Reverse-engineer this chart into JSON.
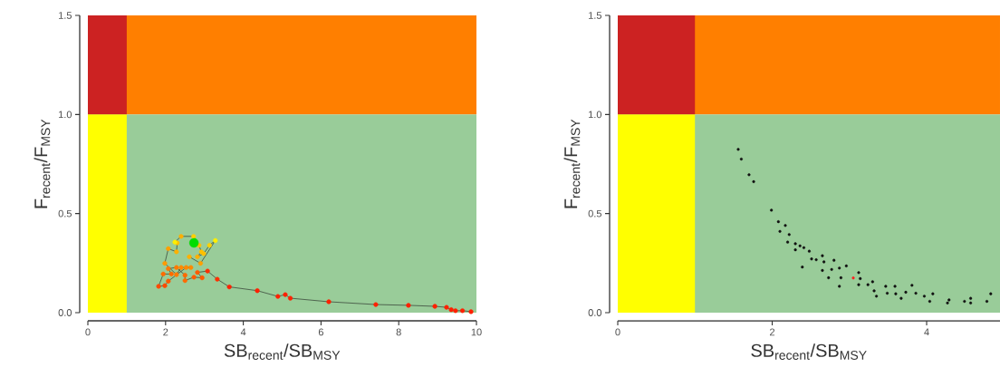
{
  "chart_data": [
    {
      "type": "line",
      "xlabel": "SB$_{recent}$/SB$_{MSY}$",
      "ylabel": "F$_{recent}$/F$_{MSY}$",
      "xlim": [
        0,
        10
      ],
      "ylim": [
        0,
        1.5
      ],
      "xticks": [
        0,
        2,
        4,
        6,
        8,
        10
      ],
      "yticks": [
        {
          "value": 0,
          "label": "0.0"
        },
        {
          "value": 0.5,
          "label": "0.5"
        },
        {
          "value": 1,
          "label": "1.0"
        },
        {
          "value": 1.5,
          "label": "1.5"
        }
      ],
      "marker": "circle",
      "bands": [
        {
          "axis": "y",
          "from": 0,
          "to": 1,
          "color": "#99cc99"
        },
        {
          "axis": "y",
          "from": 1,
          "to": 1.5,
          "color": "#ff7f00"
        },
        {
          "axis": "x",
          "from": 0,
          "to": 1,
          "color": "#ffff00"
        },
        {
          "axis": "x",
          "from": 0,
          "to": 1,
          "color": "#cc2222"
        }
      ],
      "series": [
        {
          "type": "line",
          "color": "#3c4a3c",
          "x": [
            9.86,
            9.64,
            9.46,
            9.35,
            9.23,
            8.93,
            8.25,
            7.41,
            6.2,
            5.21,
            5.08,
            4.89,
            4.36,
            3.64,
            3.33,
            3.08,
            2.82,
            2.94,
            2.73,
            2.5,
            2.5,
            2.28,
            2.07,
            2.15,
            1.94,
            1.82,
            1.98,
            2.07,
            2.53,
            2.65,
            2.4,
            2.28,
            1.98,
            2.07,
            2.28,
            2.3,
            2.24,
            2.4,
            2.72,
            2.86,
            2.92,
            2.82,
            2.98,
            3.13,
            3.28,
            2.9,
            2.61
          ],
          "values": [
            0.005,
            0.01,
            0.01,
            0.015,
            0.027,
            0.032,
            0.037,
            0.041,
            0.055,
            0.073,
            0.091,
            0.082,
            0.111,
            0.13,
            0.169,
            0.21,
            0.203,
            0.176,
            0.179,
            0.162,
            0.189,
            0.228,
            0.222,
            0.195,
            0.195,
            0.133,
            0.136,
            0.159,
            0.228,
            0.228,
            0.228,
            0.192,
            0.249,
            0.323,
            0.307,
            0.352,
            0.356,
            0.385,
            0.385,
            0.34,
            0.307,
            0.282,
            0.298,
            0.34,
            0.364,
            0.249,
            0.282
          ],
          "colors": [
            "#ff2000",
            "#ff2000",
            "#ff2000",
            "#ff2000",
            "#ff2000",
            "#ff2000",
            "#ff2000",
            "#ff2000",
            "#ff2000",
            "#ff2000",
            "#ff2000",
            "#ff2000",
            "#ff2000",
            "#ff2000",
            "#ff3000",
            "#ff3000",
            "#ff5a00",
            "#ff5a00",
            "#ff5a00",
            "#ff6a00",
            "#ff6a00",
            "#ff7a00",
            "#ff7a00",
            "#ff6a00",
            "#ff6a00",
            "#ff4a00",
            "#ff4a00",
            "#ff5a00",
            "#ff8a00",
            "#ff8a00",
            "#ff8a00",
            "#ff7a00",
            "#ff9a00",
            "#ffa000",
            "#ffb000",
            "#ffc000",
            "#ffee00",
            "#ffb000",
            "#ffd000",
            "#ffc000",
            "#ffc000",
            "#ffb000",
            "#ffc000",
            "#ffd000",
            "#ffee00",
            "#ffa000",
            "#ffb000"
          ]
        },
        {
          "type": "scatter",
          "color": "#00dd00",
          "x": [
            2.73
          ],
          "values": [
            0.352
          ]
        }
      ]
    },
    {
      "type": "scatter",
      "xlabel": "SB$_{recent}$/SB$_{MSY}$",
      "ylabel": "F$_{recent}$/F$_{MSY}$",
      "xlim": [
        0,
        4.95
      ],
      "ylim": [
        0,
        1.5
      ],
      "xticks": [
        0,
        2,
        4
      ],
      "yticks": [
        {
          "value": 0,
          "label": "0.0"
        },
        {
          "value": 0.5,
          "label": "0.5"
        },
        {
          "value": 1,
          "label": "1.0"
        },
        {
          "value": 1.5,
          "label": "1.5"
        }
      ],
      "marker": "circle",
      "bands": [
        {
          "axis": "y",
          "from": 0,
          "to": 1,
          "color": "#99cc99"
        },
        {
          "axis": "y",
          "from": 1,
          "to": 1.5,
          "color": "#ff7f00"
        },
        {
          "axis": "x",
          "from": 0,
          "to": 1,
          "color": "#ffff00"
        },
        {
          "axis": "x",
          "from": 0,
          "to": 1,
          "color": "#cc2222"
        }
      ],
      "series": [
        {
          "type": "scatter",
          "color": "#111111",
          "x": [
            1.56,
            1.6,
            1.7,
            1.76,
            1.99,
            2.08,
            2.17,
            2.1,
            2.22,
            2.2,
            2.3,
            2.36,
            2.41,
            2.3,
            2.48,
            2.51,
            2.57,
            2.65,
            2.67,
            2.8,
            2.39,
            2.65,
            2.77,
            2.87,
            2.96,
            2.73,
            2.89,
            2.87,
            3.12,
            3.14,
            3.12,
            3.24,
            3.3,
            3.32,
            3.35,
            3.47,
            3.49,
            3.59,
            3.6,
            3.67,
            3.73,
            3.81,
            3.86,
            3.97,
            4.04,
            4.08,
            4.29,
            4.27,
            4.49,
            4.57,
            4.57,
            4.78,
            4.83
          ],
          "values": [
            0.824,
            0.775,
            0.696,
            0.661,
            0.517,
            0.459,
            0.44,
            0.41,
            0.394,
            0.356,
            0.348,
            0.337,
            0.328,
            0.317,
            0.31,
            0.271,
            0.267,
            0.287,
            0.256,
            0.264,
            0.23,
            0.213,
            0.218,
            0.225,
            0.236,
            0.176,
            0.176,
            0.133,
            0.202,
            0.172,
            0.141,
            0.141,
            0.156,
            0.11,
            0.083,
            0.133,
            0.098,
            0.133,
            0.095,
            0.072,
            0.103,
            0.138,
            0.098,
            0.083,
            0.057,
            0.095,
            0.064,
            0.049,
            0.057,
            0.072,
            0.049,
            0.057,
            0.095
          ]
        },
        {
          "type": "scatter",
          "color": "#ff2020",
          "x": [
            3.05
          ],
          "values": [
            0.175
          ]
        }
      ]
    }
  ]
}
